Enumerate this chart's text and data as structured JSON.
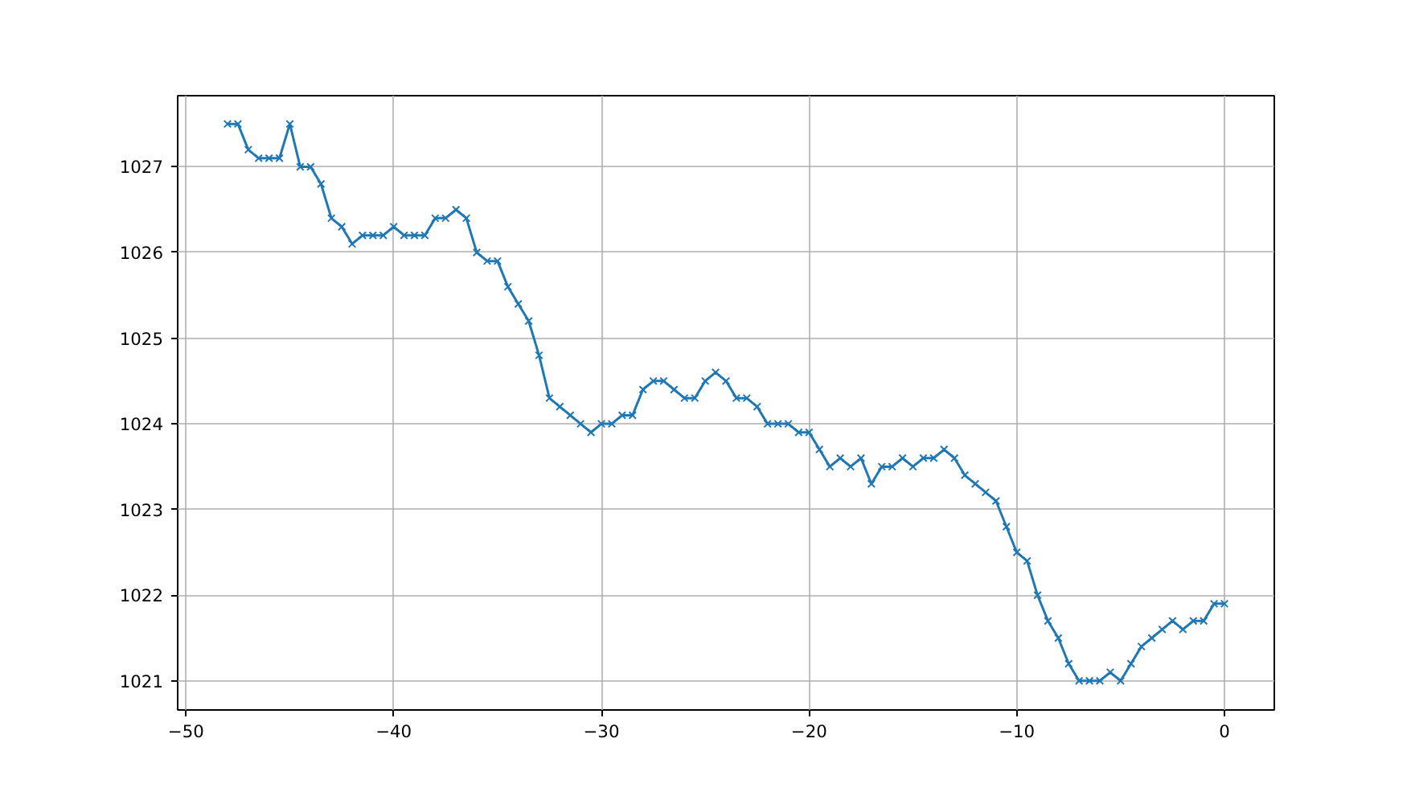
{
  "chart_data": {
    "type": "line",
    "marker": "cross",
    "line_style": "solid",
    "grid": true,
    "x": [
      -48,
      -47.5,
      -47,
      -46.5,
      -46,
      -45.5,
      -45,
      -44.5,
      -44,
      -43.5,
      -43,
      -42.5,
      -42,
      -41.5,
      -41,
      -40.5,
      -40,
      -39.5,
      -39,
      -38.5,
      -38,
      -37.5,
      -37,
      -36.5,
      -36,
      -35.5,
      -35,
      -34.5,
      -34,
      -33.5,
      -33,
      -32.5,
      -32,
      -31.5,
      -31,
      -30.5,
      -30,
      -29.5,
      -29,
      -28.5,
      -28,
      -27.5,
      -27,
      -26.5,
      -26,
      -25.5,
      -25,
      -24.5,
      -24,
      -23.5,
      -23,
      -22.5,
      -22,
      -21.5,
      -21,
      -20.5,
      -20,
      -19.5,
      -19,
      -18.5,
      -18,
      -17.5,
      -17,
      -16.5,
      -16,
      -15.5,
      -15,
      -14.5,
      -14,
      -13.5,
      -13,
      -12.5,
      -12,
      -11.5,
      -11,
      -10.5,
      -10,
      -9.5,
      -9,
      -8.5,
      -8,
      -7.5,
      -7,
      -6.5,
      -6,
      -5.5,
      -5,
      -4.5,
      -4,
      -3.5,
      -3,
      -2.5,
      -2,
      -1.5,
      -1,
      -0.5,
      0
    ],
    "series": [
      {
        "color": "#1f77b4",
        "values": [
          1027.5,
          1027.5,
          1027.2,
          1027.1,
          1027.1,
          1027.1,
          1027.5,
          1027.0,
          1027.0,
          1026.8,
          1026.4,
          1026.3,
          1026.1,
          1026.2,
          1026.2,
          1026.2,
          1026.3,
          1026.2,
          1026.2,
          1026.2,
          1026.4,
          1026.4,
          1026.5,
          1026.4,
          1026.0,
          1025.9,
          1025.9,
          1025.6,
          1025.4,
          1025.2,
          1024.8,
          1024.3,
          1024.2,
          1024.1,
          1024.0,
          1023.9,
          1024.0,
          1024.0,
          1024.1,
          1024.1,
          1024.4,
          1024.5,
          1024.5,
          1024.4,
          1024.3,
          1024.3,
          1024.5,
          1024.6,
          1024.5,
          1024.3,
          1024.3,
          1024.2,
          1024.0,
          1024.0,
          1024.0,
          1023.9,
          1023.9,
          1023.7,
          1023.5,
          1023.6,
          1023.5,
          1023.6,
          1023.3,
          1023.5,
          1023.5,
          1023.6,
          1023.5,
          1023.6,
          1023.6,
          1023.7,
          1023.6,
          1023.4,
          1023.3,
          1023.2,
          1023.1,
          1022.8,
          1022.5,
          1022.4,
          1022.0,
          1021.7,
          1021.5,
          1021.2,
          1021.0,
          1021.0,
          1021.0,
          1021.1,
          1021.0,
          1021.2,
          1021.4,
          1021.5,
          1021.6,
          1021.7,
          1021.6,
          1021.7,
          1021.7,
          1021.9,
          1021.9
        ]
      }
    ],
    "xlim": [
      -50.4,
      2.4
    ],
    "ylim": [
      1020.66,
      1027.83
    ],
    "xticks": [
      {
        "value": -50,
        "label": "−50"
      },
      {
        "value": -40,
        "label": "−40"
      },
      {
        "value": -30,
        "label": "−30"
      },
      {
        "value": -20,
        "label": "−20"
      },
      {
        "value": -10,
        "label": "−10"
      },
      0
    ],
    "yticks": [
      1021,
      1022,
      1023,
      1024,
      1025,
      1026,
      1027
    ]
  }
}
